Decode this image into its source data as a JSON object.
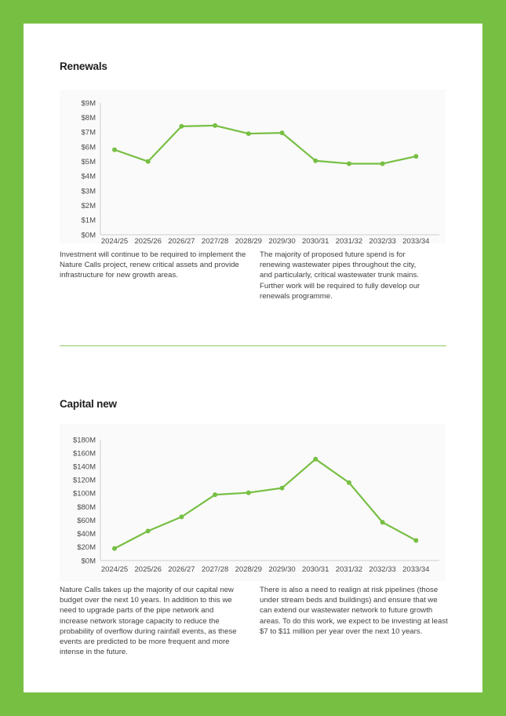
{
  "colors": {
    "border": "#77bf43",
    "line": "#77bf43",
    "axis": "#cfcfcf"
  },
  "sections": [
    {
      "heading": "Renewals",
      "text_left": "Investment will continue to be required to implement the Nature Calls project, renew critical assets and provide infrastructure for new growth areas.",
      "text_right": "The majority of proposed future spend is for renewing wastewater pipes throughout the city, and particularly, critical wastewater trunk mains. Further work will be required to fully develop our renewals programme."
    },
    {
      "heading": "Capital new",
      "text_left": "Nature Calls takes up the majority of our capital new budget over the next 10 years. In addition to this we need to upgrade parts of the pipe network and increase network storage capacity to reduce the probability of overflow during rainfall events, as these events are predicted to be more frequent and more intense in the future.",
      "text_right": "There is also a need to realign at risk pipelines (those under stream beds and buildings) and ensure that we can extend our wastewater network to future growth areas. To do this work, we expect to be investing at least $7 to $11 million per year over the next 10 years."
    }
  ],
  "chart_data": [
    {
      "type": "line",
      "categories": [
        "2024/25",
        "2025/26",
        "2026/27",
        "2027/28",
        "2028/29",
        "2029/30",
        "2030/31",
        "2031/32",
        "2032/33",
        "2033/34"
      ],
      "values": [
        5.8,
        5.0,
        7.4,
        7.45,
        6.9,
        6.95,
        5.05,
        4.85,
        4.85,
        5.35
      ],
      "ylim": [
        0,
        9
      ],
      "yticks": [
        0,
        1,
        2,
        3,
        4,
        5,
        6,
        7,
        8,
        9
      ],
      "ytick_labels": [
        "$0M",
        "$1M",
        "$2M",
        "$3M",
        "$4M",
        "$5M",
        "$6M",
        "$7M",
        "$8M",
        "$9M"
      ],
      "title": "",
      "xlabel": "",
      "ylabel": "",
      "grid": false
    },
    {
      "type": "line",
      "categories": [
        "2024/25",
        "2025/26",
        "2026/27",
        "2027/28",
        "2028/29",
        "2029/30",
        "2030/31",
        "2031/32",
        "2032/33",
        "2033/34"
      ],
      "values": [
        18,
        44,
        65,
        98,
        101,
        108,
        151,
        116,
        57,
        30
      ],
      "ylim": [
        0,
        180
      ],
      "yticks": [
        0,
        20,
        40,
        60,
        80,
        100,
        120,
        140,
        160,
        180
      ],
      "ytick_labels": [
        "$0M",
        "$20M",
        "$40M",
        "$60M",
        "$80M",
        "$100M",
        "$120M",
        "$140M",
        "$160M",
        "$180M"
      ],
      "title": "",
      "xlabel": "",
      "ylabel": "",
      "grid": false
    }
  ]
}
